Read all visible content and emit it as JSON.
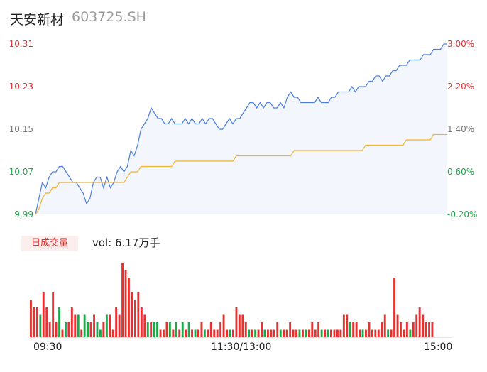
{
  "stock": {
    "name": "天安新材",
    "code": "603725.SH"
  },
  "price_axis": {
    "left_labels": [
      "10.31",
      "10.23",
      "10.15",
      "10.07",
      "9.99"
    ],
    "right_labels": [
      "3.00%",
      "2.20%",
      "1.40%",
      "0.60%",
      "-0.20%"
    ],
    "colors": {
      "up": "#e8302f",
      "flat": "#777777",
      "down": "#1ea84a"
    }
  },
  "volume": {
    "tag": "日成交量",
    "label": "vol: 6.17万手"
  },
  "time_axis": {
    "labels": [
      "09:30",
      "11:30/13:00",
      "15:00"
    ]
  },
  "chart_data": [
    {
      "type": "line",
      "series": [
        {
          "role": "price",
          "color": "#4a7fe0",
          "values": [
            9.99,
            10.02,
            10.05,
            10.04,
            10.06,
            10.07,
            10.07,
            10.08,
            10.08,
            10.07,
            10.06,
            10.05,
            10.05,
            10.04,
            10.03,
            10.01,
            10.02,
            10.05,
            10.06,
            10.06,
            10.04,
            10.06,
            10.04,
            10.05,
            10.07,
            10.08,
            10.07,
            10.08,
            10.11,
            10.1,
            10.12,
            10.15,
            10.16,
            10.17,
            10.19,
            10.18,
            10.17,
            10.17,
            10.16,
            10.16,
            10.17,
            10.16,
            10.16,
            10.16,
            10.17,
            10.16,
            10.17,
            10.16,
            10.16,
            10.17,
            10.16,
            10.17,
            10.17,
            10.16,
            10.15,
            10.15,
            10.16,
            10.17,
            10.16,
            10.17,
            10.17,
            10.18,
            10.19,
            10.2,
            10.2,
            10.19,
            10.2,
            10.19,
            10.2,
            10.2,
            10.19,
            10.19,
            10.2,
            10.19,
            10.21,
            10.22,
            10.21,
            10.21,
            10.2,
            10.2,
            10.2,
            10.2,
            10.2,
            10.21,
            10.2,
            10.2,
            10.2,
            10.21,
            10.21,
            10.22,
            10.22,
            10.22,
            10.22,
            10.23,
            10.22,
            10.23,
            10.23,
            10.23,
            10.24,
            10.24,
            10.25,
            10.25,
            10.24,
            10.25,
            10.25,
            10.26,
            10.26,
            10.27,
            10.27,
            10.27,
            10.28,
            10.28,
            10.28,
            10.28,
            10.29,
            10.29,
            10.29,
            10.3,
            10.3,
            10.3,
            10.31,
            10.31
          ]
        },
        {
          "role": "average",
          "color": "#f2b430",
          "values": [
            9.99,
            10.0,
            10.02,
            10.03,
            10.03,
            10.04,
            10.04,
            10.05,
            10.05,
            10.05,
            10.05,
            10.05,
            10.05,
            10.05,
            10.05,
            10.05,
            10.05,
            10.05,
            10.05,
            10.05,
            10.05,
            10.05,
            10.05,
            10.05,
            10.05,
            10.05,
            10.05,
            10.06,
            10.07,
            10.07,
            10.07,
            10.08,
            10.08,
            10.08,
            10.08,
            10.08,
            10.08,
            10.08,
            10.08,
            10.08,
            10.08,
            10.09,
            10.09,
            10.09,
            10.09,
            10.09,
            10.09,
            10.09,
            10.09,
            10.09,
            10.09,
            10.09,
            10.09,
            10.09,
            10.09,
            10.09,
            10.09,
            10.09,
            10.09,
            10.1,
            10.1,
            10.1,
            10.1,
            10.1,
            10.1,
            10.1,
            10.1,
            10.1,
            10.1,
            10.1,
            10.1,
            10.1,
            10.1,
            10.1,
            10.1,
            10.1,
            10.11,
            10.11,
            10.11,
            10.11,
            10.11,
            10.11,
            10.11,
            10.11,
            10.11,
            10.11,
            10.11,
            10.11,
            10.11,
            10.11,
            10.11,
            10.11,
            10.11,
            10.11,
            10.11,
            10.11,
            10.11,
            10.12,
            10.12,
            10.12,
            10.12,
            10.12,
            10.12,
            10.12,
            10.12,
            10.12,
            10.12,
            10.12,
            10.12,
            10.13,
            10.13,
            10.13,
            10.13,
            10.13,
            10.13,
            10.13,
            10.13,
            10.14,
            10.14,
            10.14,
            10.14,
            10.14
          ]
        }
      ],
      "ylim": [
        9.99,
        10.31
      ]
    },
    {
      "type": "bar",
      "role": "volume",
      "colors": {
        "up": "#e8302f",
        "down": "#1ea84a"
      },
      "values": [
        5,
        4,
        4,
        3,
        6,
        4,
        2,
        6,
        2,
        4,
        1,
        2,
        2,
        4,
        3,
        3,
        1,
        3,
        2,
        2,
        3,
        2,
        1,
        2,
        3,
        3,
        1,
        4,
        3,
        10,
        9,
        8,
        6,
        5,
        6,
        4,
        3,
        2,
        2,
        2,
        2,
        1,
        1,
        2,
        2,
        1,
        2,
        1,
        2,
        1,
        2,
        1,
        1,
        1,
        2,
        1,
        1,
        2,
        1,
        1,
        2,
        3,
        1,
        1,
        1,
        4,
        3,
        3,
        2,
        1,
        1,
        1,
        1,
        2,
        1,
        1,
        1,
        1,
        2,
        1,
        1,
        1,
        2,
        1,
        1,
        1,
        1,
        1,
        1,
        2,
        1,
        2,
        1,
        1,
        1,
        1,
        1,
        1,
        1,
        3,
        3,
        2,
        2,
        2,
        1,
        1,
        1,
        2,
        1,
        1,
        1,
        2,
        3,
        1,
        1,
        8,
        3,
        2,
        1,
        2,
        1,
        2,
        3,
        4,
        3,
        2,
        2,
        2
      ],
      "directions": [
        "up",
        "up",
        "up",
        "down",
        "up",
        "up",
        "up",
        "up",
        "up",
        "down",
        "up",
        "down",
        "up",
        "up",
        "up",
        "down",
        "up",
        "down",
        "down",
        "up",
        "up",
        "down",
        "down",
        "up",
        "down",
        "up",
        "up",
        "up",
        "up",
        "up",
        "up",
        "up",
        "up",
        "up",
        "up",
        "up",
        "up",
        "down",
        "up",
        "down",
        "down",
        "up",
        "up",
        "up",
        "down",
        "up",
        "down",
        "up",
        "down",
        "up",
        "down",
        "up",
        "down",
        "up",
        "up",
        "down",
        "up",
        "up",
        "up",
        "up",
        "up",
        "up",
        "up",
        "down",
        "up",
        "up",
        "up",
        "up",
        "up",
        "down",
        "up",
        "down",
        "up",
        "up",
        "down",
        "up",
        "up",
        "up",
        "up",
        "down",
        "up",
        "up",
        "up",
        "up",
        "up",
        "down",
        "up",
        "down",
        "up",
        "up",
        "up",
        "up",
        "down",
        "up",
        "down",
        "up",
        "up",
        "up",
        "up",
        "up",
        "up",
        "down",
        "up",
        "up",
        "up",
        "down",
        "up",
        "up",
        "up",
        "up",
        "up",
        "up",
        "up",
        "down",
        "up",
        "up",
        "up",
        "up",
        "up",
        "up",
        "down",
        "up",
        "up",
        "up",
        "up",
        "up",
        "up",
        "up"
      ]
    }
  ]
}
